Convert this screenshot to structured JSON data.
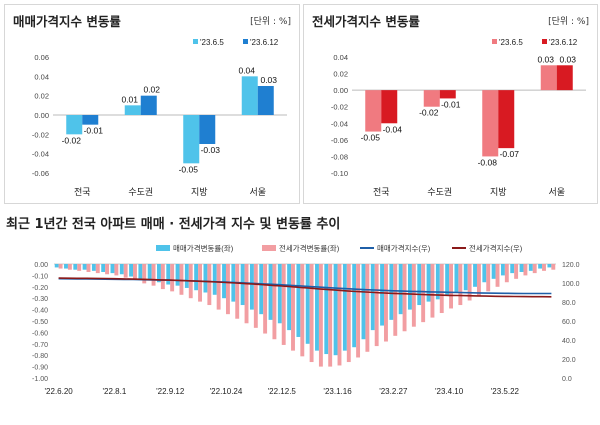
{
  "chart_data": [
    {
      "type": "bar",
      "title": "매매가격지수 변동률",
      "unit_label": "[단위 : %]",
      "categories": [
        "전국",
        "수도권",
        "지방",
        "서울"
      ],
      "series": [
        {
          "name": "'23.6.5",
          "values": [
            -0.02,
            0.01,
            -0.05,
            0.04
          ],
          "color": "#4fc3ea"
        },
        {
          "name": "'23.6.12",
          "values": [
            -0.01,
            0.02,
            -0.03,
            0.03
          ],
          "color": "#1f7fd1"
        }
      ],
      "data_labels": [
        [
          "-0.02",
          "0.01",
          "-0.05",
          "0.04"
        ],
        [
          "-0.01",
          "0.02",
          "-0.03",
          "0.03"
        ]
      ],
      "ylim": [
        -0.06,
        0.06
      ],
      "yticks": [
        "0.06",
        "0.04",
        "0.02",
        "0.00",
        "-0.02",
        "-0.04",
        "-0.06"
      ],
      "ytick_values": [
        0.06,
        0.04,
        0.02,
        0.0,
        -0.02,
        -0.04,
        -0.06
      ]
    },
    {
      "type": "bar",
      "title": "전세가격지수 변동률",
      "unit_label": "[단위 : %]",
      "categories": [
        "전국",
        "수도권",
        "지방",
        "서울"
      ],
      "series": [
        {
          "name": "'23.6.5",
          "values": [
            -0.05,
            -0.02,
            -0.08,
            0.03
          ],
          "color": "#f07a80"
        },
        {
          "name": "'23.6.12",
          "values": [
            -0.04,
            -0.01,
            -0.07,
            0.03
          ],
          "color": "#d81a22"
        }
      ],
      "data_labels": [
        [
          "-0.05",
          "-0.02",
          "-0.08",
          "0.03"
        ],
        [
          "-0.04",
          "-0.01",
          "-0.07",
          "0.03"
        ]
      ],
      "ylim": [
        -0.1,
        0.04
      ],
      "yticks": [
        "0.04",
        "0.02",
        "0.00",
        "-0.02",
        "-0.04",
        "-0.06",
        "-0.08",
        "-0.10"
      ],
      "ytick_values": [
        0.04,
        0.02,
        0.0,
        -0.02,
        -0.04,
        -0.06,
        -0.08,
        -0.1
      ]
    },
    {
      "type": "bar",
      "title": "최근 1년간 전국 아파트 매매 · 전세가격 지수 및 변동률 추이",
      "series": [
        {
          "name": "매매가격변동률(좌)",
          "color": "#4fc3ea",
          "kind": "bar",
          "values": [
            -0.03,
            -0.04,
            -0.05,
            -0.05,
            -0.06,
            -0.07,
            -0.08,
            -0.09,
            -0.11,
            -0.13,
            -0.14,
            -0.16,
            -0.18,
            -0.19,
            -0.21,
            -0.23,
            -0.25,
            -0.27,
            -0.3,
            -0.33,
            -0.36,
            -0.4,
            -0.44,
            -0.49,
            -0.52,
            -0.58,
            -0.64,
            -0.7,
            -0.76,
            -0.79,
            -0.8,
            -0.76,
            -0.73,
            -0.66,
            -0.58,
            -0.54,
            -0.49,
            -0.44,
            -0.4,
            -0.36,
            -0.33,
            -0.31,
            -0.28,
            -0.25,
            -0.23,
            -0.2,
            -0.16,
            -0.13,
            -0.1,
            -0.08,
            -0.07,
            -0.06,
            -0.04,
            -0.03
          ]
        },
        {
          "name": "전세가격변동률(좌)",
          "color": "#f29ea2",
          "kind": "bar",
          "values": [
            -0.04,
            -0.05,
            -0.06,
            -0.07,
            -0.08,
            -0.09,
            -0.1,
            -0.12,
            -0.14,
            -0.17,
            -0.19,
            -0.22,
            -0.24,
            -0.27,
            -0.3,
            -0.33,
            -0.36,
            -0.4,
            -0.44,
            -0.48,
            -0.52,
            -0.56,
            -0.61,
            -0.66,
            -0.71,
            -0.76,
            -0.81,
            -0.86,
            -0.9,
            -0.9,
            -0.89,
            -0.86,
            -0.82,
            -0.77,
            -0.72,
            -0.68,
            -0.63,
            -0.59,
            -0.55,
            -0.51,
            -0.47,
            -0.43,
            -0.39,
            -0.36,
            -0.32,
            -0.28,
            -0.24,
            -0.2,
            -0.16,
            -0.13,
            -0.1,
            -0.08,
            -0.06,
            -0.05
          ]
        },
        {
          "name": "매매가격지수(우)",
          "color": "#1f5fa8",
          "kind": "line",
          "values": [
            104.5,
            104.4,
            104.3,
            104.2,
            104.1,
            104.0,
            103.9,
            103.8,
            103.7,
            103.5,
            103.3,
            103.1,
            102.9,
            102.6,
            102.3,
            102.0,
            101.7,
            101.3,
            100.9,
            100.5,
            100.1,
            99.6,
            99.1,
            98.6,
            98.1,
            97.5,
            96.9,
            96.3,
            95.7,
            95.1,
            94.5,
            94.0,
            93.5,
            93.0,
            92.6,
            92.2,
            91.8,
            91.5,
            91.2,
            90.9,
            90.6,
            90.4,
            90.2,
            90.0,
            89.8,
            89.6,
            89.4,
            89.3,
            89.2,
            89.1,
            89.0,
            89.0,
            88.9,
            88.9
          ]
        },
        {
          "name": "전세가격지수(우)",
          "color": "#8b1a1a",
          "kind": "line",
          "values": [
            105.2,
            105.1,
            105.0,
            104.9,
            104.8,
            104.7,
            104.5,
            104.3,
            104.1,
            103.9,
            103.6,
            103.3,
            103.0,
            102.7,
            102.3,
            101.9,
            101.5,
            101.0,
            100.5,
            100.0,
            99.4,
            98.8,
            98.2,
            97.5,
            96.8,
            96.1,
            95.3,
            94.6,
            93.8,
            93.1,
            92.4,
            91.7,
            91.1,
            90.5,
            90.0,
            89.5,
            89.1,
            88.7,
            88.3,
            87.9,
            87.6,
            87.3,
            87.0,
            86.8,
            86.6,
            86.4,
            86.2,
            86.0,
            85.9,
            85.8,
            85.7,
            85.6,
            85.6,
            85.5
          ]
        }
      ],
      "x_tick_labels": [
        "'22.6.20",
        "'22.8.1",
        "'22.9.12",
        "'22.10.24",
        "'22.12.5",
        "'23.1.16",
        "'23.2.27",
        "'23.4.10",
        "'23.5.22"
      ],
      "x_tick_index": [
        0,
        6,
        12,
        18,
        24,
        30,
        36,
        42,
        48
      ],
      "ylim": [
        -1.0,
        0.0
      ],
      "yticks": [
        "0.00",
        "-0.10",
        "-0.20",
        "-0.30",
        "-0.40",
        "-0.50",
        "-0.60",
        "-0.70",
        "-0.80",
        "-0.90",
        "-1.00"
      ],
      "ytick_values": [
        0.0,
        -0.1,
        -0.2,
        -0.3,
        -0.4,
        -0.5,
        -0.6,
        -0.7,
        -0.8,
        -0.9,
        -1.0
      ],
      "y2lim": [
        0,
        120
      ],
      "y2ticks": [
        "120.0",
        "100.0",
        "80.0",
        "60.0",
        "40.0",
        "20.0",
        "0.0"
      ],
      "y2tick_values": [
        120,
        100,
        80,
        60,
        40,
        20,
        0
      ]
    }
  ]
}
